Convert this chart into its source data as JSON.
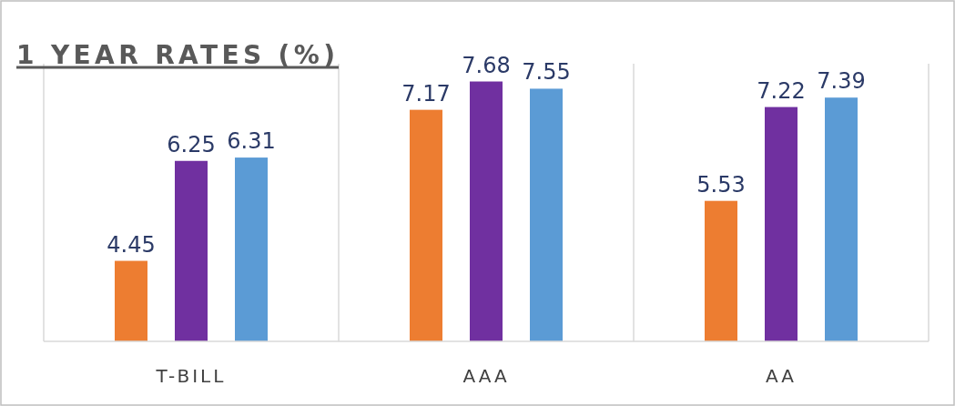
{
  "chart_data": {
    "type": "bar",
    "title": "1 YEAR RATES (%)",
    "categories": [
      "T-BILL",
      "AAA",
      "AA"
    ],
    "series": [
      {
        "color": "#ed7d31",
        "values": [
          4.45,
          7.17,
          5.53
        ]
      },
      {
        "color": "#7030a0",
        "values": [
          6.25,
          7.68,
          7.22
        ]
      },
      {
        "color": "#5b9bd5",
        "values": [
          6.31,
          7.55,
          7.39
        ]
      }
    ],
    "ylim": [
      3,
      8
    ],
    "tick_labels": "x",
    "grid": "x",
    "data_labels": true
  }
}
